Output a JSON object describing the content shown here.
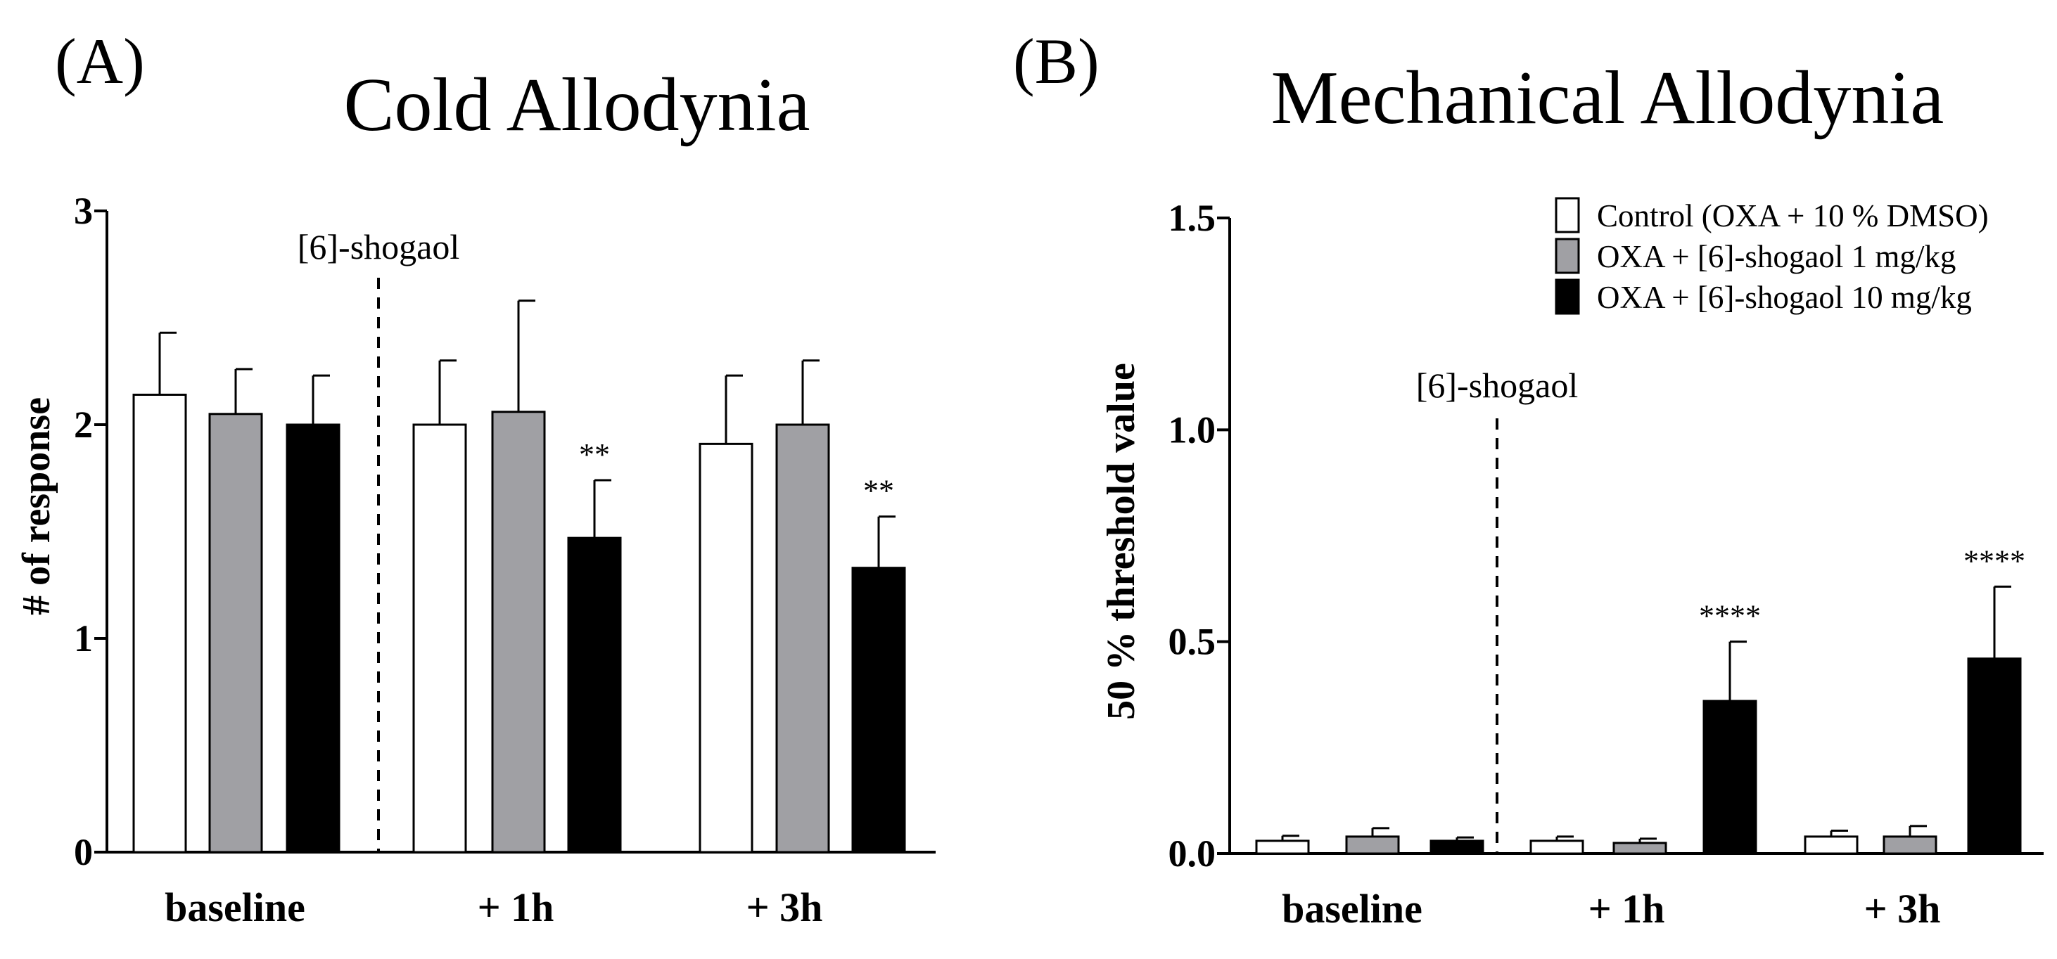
{
  "colors": {
    "control": "#ffffff",
    "dose1": "#a0a0a4",
    "dose10": "#000000",
    "stroke": "#000000"
  },
  "chart_data": [
    {
      "panel": "(A)",
      "type": "bar",
      "title": "Cold Allodynia",
      "xlabel": "",
      "ylabel": "# of response",
      "ylim": [
        0,
        3
      ],
      "yticks": [
        "0",
        "1",
        "2",
        "3"
      ],
      "categories": [
        "baseline",
        "+ 1h",
        "+ 3h"
      ],
      "series": [
        {
          "name": "Control (OXA + 10 % DMSO)",
          "values": [
            2.14,
            2.0,
            1.91
          ],
          "errors": [
            0.29,
            0.3,
            0.32
          ]
        },
        {
          "name": "OXA + [6]-shogaol 1 mg/kg",
          "values": [
            2.05,
            2.06,
            2.0
          ],
          "errors": [
            0.21,
            0.52,
            0.3
          ]
        },
        {
          "name": "OXA + [6]-shogaol 10 mg/kg",
          "values": [
            2.0,
            1.47,
            1.33
          ],
          "errors": [
            0.23,
            0.27,
            0.24
          ]
        }
      ],
      "annotations": {
        "dashed_line_label": "[6]-shogaol",
        "significance": [
          "",
          "**",
          "**"
        ]
      }
    },
    {
      "panel": "(B)",
      "type": "bar",
      "title": "Mechanical Allodynia",
      "xlabel": "",
      "ylabel": "50 % threshold value",
      "ylim": [
        0,
        1.5
      ],
      "yticks": [
        "0.0",
        "0.5",
        "1.0",
        "1.5"
      ],
      "categories": [
        "baseline",
        "+ 1h",
        "+ 3h"
      ],
      "series": [
        {
          "name": "Control (OXA + 10 % DMSO)",
          "values": [
            0.03,
            0.03,
            0.04
          ],
          "errors": [
            0.012,
            0.01,
            0.014
          ]
        },
        {
          "name": "OXA + [6]-shogaol 1 mg/kg",
          "values": [
            0.04,
            0.025,
            0.04
          ],
          "errors": [
            0.02,
            0.01,
            0.025
          ]
        },
        {
          "name": "OXA + [6]-shogaol 10 mg/kg",
          "values": [
            0.03,
            0.36,
            0.46
          ],
          "errors": [
            0.008,
            0.14,
            0.17
          ]
        }
      ],
      "legend": [
        "Control (OXA + 10 % DMSO)",
        "OXA + [6]-shogaol 1 mg/kg",
        "OXA + [6]-shogaol 10 mg/kg"
      ],
      "legend_position": "top-right",
      "annotations": {
        "dashed_line_label": "[6]-shogaol",
        "significance": [
          "",
          "****",
          "****"
        ]
      }
    }
  ]
}
